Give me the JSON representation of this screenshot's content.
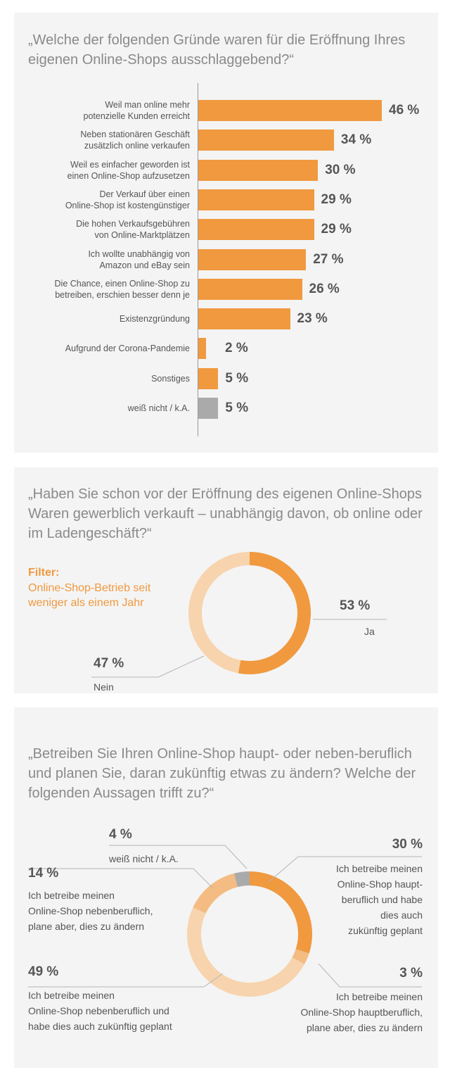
{
  "colors": {
    "orange": "#f0993f",
    "light_orange": "#f7d4ae",
    "mid_orange": "#f4bc82",
    "gray": "#aaaaaa"
  },
  "section1": {
    "question": "„Welche der folgenden Gründe waren für die Eröffnung Ihres eigenen Online-Shops ausschlaggebend?“"
  },
  "section2": {
    "question": "„Haben Sie schon vor der Eröffnung des eigenen Online-Shops Waren gewerblich verkauft – unabhängig davon, ob online oder im Ladengeschäft?“",
    "filter_title": "Filter:",
    "filter_text": "Online-Shop-Betrieb seit weniger als einem Jahr"
  },
  "section3": {
    "question": "„Betreiben Sie Ihren Online-Shop haupt- oder neben-beruflich und planen Sie, daran zukünftig etwas zu ändern? Welche der folgenden Aussagen trifft zu?“"
  },
  "chart_data": [
    {
      "type": "bar",
      "orientation": "horizontal",
      "categories": [
        "Weil man online mehr potenzielle Kunden erreicht",
        "Neben stationären Geschäft zusätzlich online verkaufen",
        "Weil es einfacher geworden ist einen Online-Shop aufzusetzen",
        "Der Verkauf über einen Online-Shop ist kostengünstiger",
        "Die hohen Verkaufsgebühren von Online-Marktplätzen",
        "Ich wollte unabhängig von Amazon und eBay sein",
        "Die Chance, einen Online-Shop zu betreiben, erschien besser denn je",
        "Existenzgründung",
        "Aufgrund der Corona-Pandemie",
        "Sonstiges",
        "weiß nicht / k.A."
      ],
      "label_lines": [
        [
          "Weil man online mehr",
          "potenzielle Kunden erreicht"
        ],
        [
          "Neben stationären Geschäft",
          "zusätzlich online verkaufen"
        ],
        [
          "Weil es einfacher geworden ist",
          "einen Online-Shop aufzusetzen"
        ],
        [
          "Der Verkauf über einen",
          "Online-Shop ist kostengünstiger"
        ],
        [
          "Die hohen Verkaufsgebühren",
          "von Online-Marktplätzen"
        ],
        [
          "Ich wollte unabhängig von",
          "Amazon und eBay sein"
        ],
        [
          "Die Chance, einen Online-Shop zu",
          "betreiben, erschien besser denn je"
        ],
        [
          "Existenzgründung"
        ],
        [
          "Aufgrund der Corona-Pandemie"
        ],
        [
          "Sonstiges"
        ],
        [
          "weiß nicht / k.A."
        ]
      ],
      "values": [
        46,
        34,
        30,
        29,
        29,
        27,
        26,
        23,
        2,
        5,
        5
      ],
      "value_labels": [
        "46 %",
        "34 %",
        "30 %",
        "29 %",
        "29 %",
        "27 %",
        "26 %",
        "23 %",
        "2 %",
        "5 %",
        "5 %"
      ],
      "bar_colors": [
        "#f0993f",
        "#f0993f",
        "#f0993f",
        "#f0993f",
        "#f0993f",
        "#f0993f",
        "#f0993f",
        "#f0993f",
        "#f0993f",
        "#f0993f",
        "#aaaaaa"
      ],
      "xlim": [
        0,
        46
      ]
    },
    {
      "type": "pie",
      "variant": "donut",
      "slices": [
        {
          "label": "Ja",
          "value": 53,
          "value_label": "53 %",
          "color": "#f0993f"
        },
        {
          "label": "Nein",
          "value": 47,
          "value_label": "47 %",
          "color": "#f7d4ae"
        }
      ]
    },
    {
      "type": "pie",
      "variant": "donut",
      "slices": [
        {
          "label": "Ich betreibe meinen Online-Shop haupt-beruflich und habe dies auch zukünftig geplant",
          "label_lines": [
            "Ich betreibe meinen",
            "Online-Shop haupt-",
            "beruflich und habe",
            "dies auch",
            "zukünftig geplant"
          ],
          "value": 30,
          "value_label": "30 %",
          "color": "#f0993f"
        },
        {
          "label": "Ich betreibe meinen Online-Shop hauptberuflich, plane aber, dies zu ändern",
          "label_lines": [
            "Ich betreibe meinen",
            "Online-Shop hauptberuflich,",
            "plane aber, dies zu ändern"
          ],
          "value": 3,
          "value_label": "3 %",
          "color": "#f4bc82"
        },
        {
          "label": "Ich betreibe meinen Online-Shop nebenberuflich und habe dies auch zukünftig geplant",
          "label_lines": [
            "Ich betreibe meinen",
            "Online-Shop nebenberuflich und",
            "habe dies auch zukünftig geplant"
          ],
          "value": 49,
          "value_label": "49 %",
          "color": "#f7d4ae"
        },
        {
          "label": "Ich betreibe meinen Online-Shop nebenberuflich, plane aber, dies zu ändern",
          "label_lines": [
            "Ich betreibe meinen",
            "Online-Shop nebenberuflich,",
            "plane aber, dies zu ändern"
          ],
          "value": 14,
          "value_label": "14 %",
          "color": "#f4bc82"
        },
        {
          "label": "weiß nicht / k.A.",
          "label_lines": [
            "weiß nicht / k.A."
          ],
          "value": 4,
          "value_label": "4 %",
          "color": "#aaaaaa"
        }
      ]
    }
  ]
}
